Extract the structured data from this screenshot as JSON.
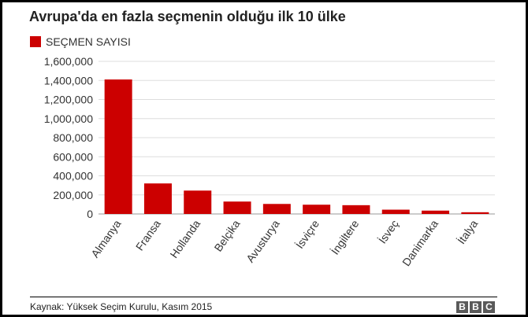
{
  "brand_color": "#cc0000",
  "chart_data": {
    "type": "bar",
    "title": "Avrupa'da en fazla seçmenin olduğu ilk 10 ülke",
    "series": [
      {
        "name": "SEÇMEN SAYISI",
        "values": [
          1410000,
          320000,
          245000,
          130000,
          105000,
          97000,
          92000,
          45000,
          35000,
          18000
        ]
      }
    ],
    "categories": [
      "Almanya",
      "Fransa",
      "Hollanda",
      "Belçika",
      "Avusturya",
      "İsviçre",
      "İngiltere",
      "İsveç",
      "Danimarka",
      "İtalya"
    ],
    "y_ticks": [
      "0",
      "200,000",
      "400,000",
      "600,000",
      "800,000",
      "1,000,000",
      "1,200,000",
      "1,400,000",
      "1,600,000"
    ],
    "ylim": [
      0,
      1600000
    ],
    "grid": true,
    "legend_position": "top-left",
    "color": "#cc0000"
  },
  "footer": {
    "source": "Kaynak: Yüksek Seçim Kurulu, Kasım 2015",
    "logo_letters": [
      "B",
      "B",
      "C"
    ]
  }
}
